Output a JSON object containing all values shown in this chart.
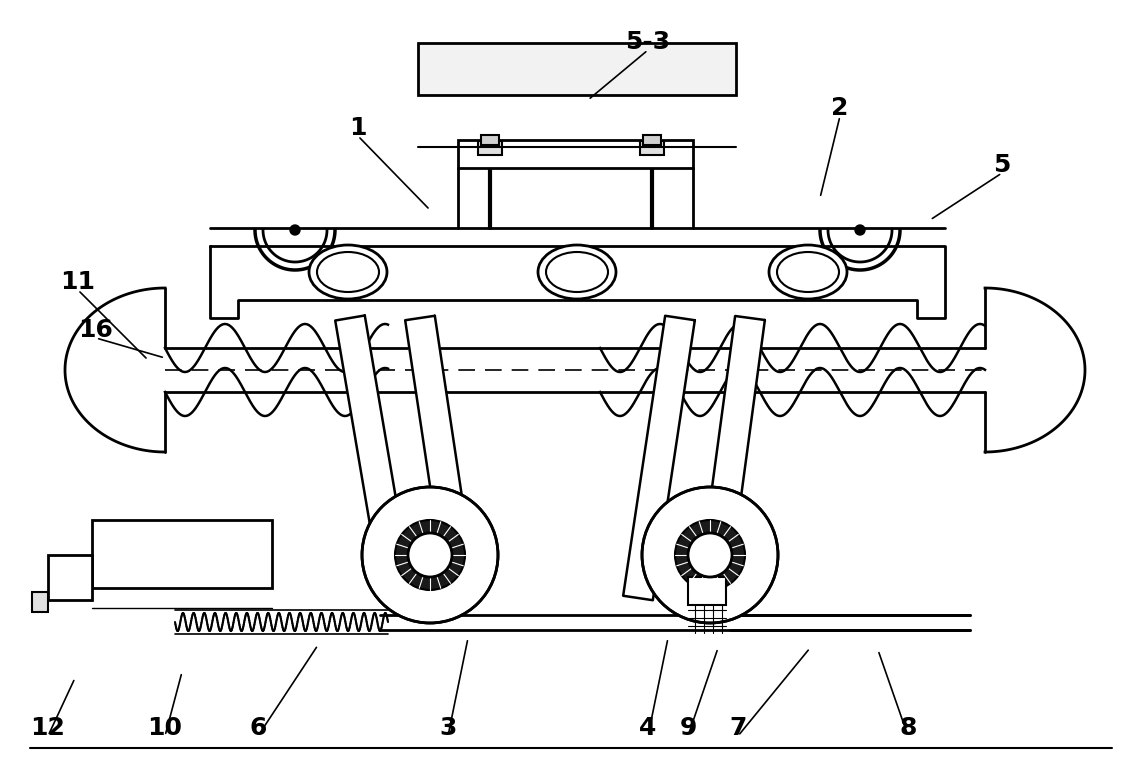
{
  "bg_color": "#ffffff",
  "line_color": "#000000",
  "figsize": [
    11.42,
    7.68
  ],
  "dpi": 100,
  "annotations": [
    [
      "1",
      358,
      128,
      430,
      210
    ],
    [
      "2",
      840,
      108,
      820,
      198
    ],
    [
      "5-3",
      648,
      42,
      588,
      100
    ],
    [
      "5",
      1002,
      165,
      930,
      220
    ],
    [
      "11",
      78,
      282,
      148,
      360
    ],
    [
      "16",
      96,
      330,
      165,
      358
    ],
    [
      "3",
      448,
      728,
      468,
      638
    ],
    [
      "4",
      648,
      728,
      668,
      638
    ],
    [
      "6",
      258,
      728,
      318,
      645
    ],
    [
      "7",
      738,
      728,
      810,
      648
    ],
    [
      "8",
      908,
      728,
      878,
      650
    ],
    [
      "9",
      688,
      728,
      718,
      648
    ],
    [
      "10",
      165,
      728,
      182,
      672
    ],
    [
      "12",
      48,
      728,
      75,
      678
    ]
  ]
}
